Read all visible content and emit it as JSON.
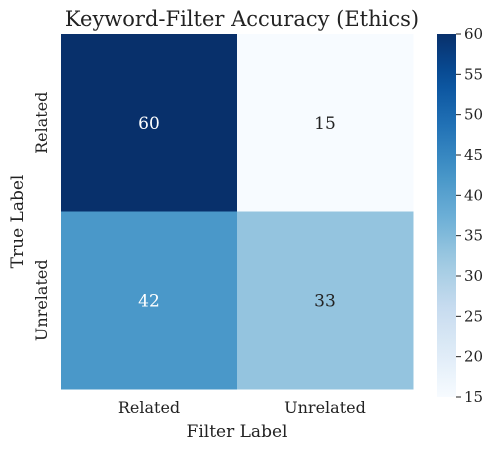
{
  "chart_data": {
    "type": "heatmap",
    "title": "Keyword-Filter Accuracy (Ethics)",
    "xlabel": "Filter Label",
    "ylabel": "True Label",
    "x_categories": [
      "Related",
      "Unrelated"
    ],
    "y_categories": [
      "Related",
      "Unrelated"
    ],
    "values": [
      [
        60,
        15
      ],
      [
        42,
        33
      ]
    ],
    "colormap": "Blues",
    "colorbar": {
      "min": 15,
      "max": 60,
      "ticks": [
        15,
        20,
        25,
        30,
        35,
        40,
        45,
        50,
        55,
        60
      ]
    },
    "grid": false,
    "annotations_shown": true
  }
}
